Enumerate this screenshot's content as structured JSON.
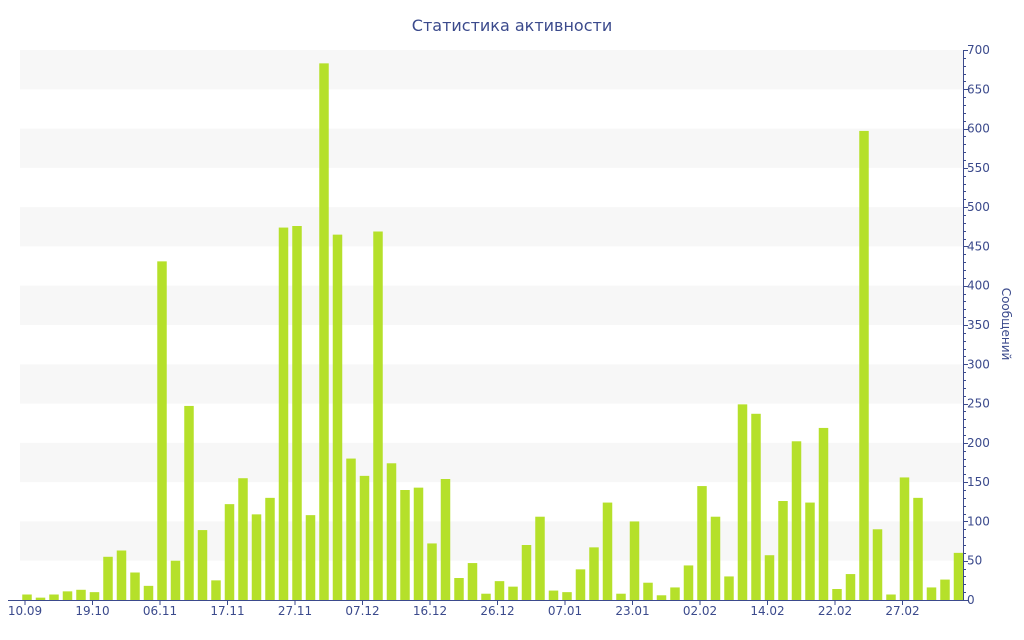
{
  "chart_data": {
    "type": "bar",
    "title": "Статистика активности",
    "xlabel": "",
    "ylabel": "Сообщений",
    "ylim": [
      0,
      700
    ],
    "y_ticks": [
      0,
      50,
      100,
      150,
      200,
      250,
      300,
      350,
      400,
      450,
      500,
      550,
      600,
      650,
      700
    ],
    "y_axis_position": "right",
    "bar_color": "#b5e02a",
    "text_color": "#3b4a8c",
    "band_color": "#f7f7f7",
    "x_tick_labels": [
      {
        "index": 0,
        "label": "10.09"
      },
      {
        "index": 5,
        "label": "19.10"
      },
      {
        "index": 10,
        "label": "06.11"
      },
      {
        "index": 15,
        "label": "17.11"
      },
      {
        "index": 20,
        "label": "27.11"
      },
      {
        "index": 25,
        "label": "07.12"
      },
      {
        "index": 30,
        "label": "16.12"
      },
      {
        "index": 35,
        "label": "26.12"
      },
      {
        "index": 40,
        "label": "07.01"
      },
      {
        "index": 45,
        "label": "23.01"
      },
      {
        "index": 50,
        "label": "02.02"
      },
      {
        "index": 55,
        "label": "14.02"
      },
      {
        "index": 60,
        "label": "22.02"
      },
      {
        "index": 65,
        "label": "27.02"
      }
    ],
    "values": [
      7,
      3,
      7,
      11,
      13,
      10,
      55,
      63,
      35,
      18,
      431,
      50,
      247,
      89,
      25,
      122,
      155,
      109,
      130,
      474,
      476,
      108,
      683,
      465,
      180,
      158,
      469,
      174,
      140,
      143,
      72,
      154,
      28,
      47,
      8,
      24,
      17,
      70,
      106,
      12,
      10,
      39,
      67,
      124,
      8,
      100,
      22,
      6,
      16,
      44,
      145,
      106,
      30,
      249,
      237,
      57,
      126,
      202,
      124,
      219,
      14,
      33,
      597,
      90,
      7,
      156,
      130,
      16,
      26,
      60
    ]
  }
}
